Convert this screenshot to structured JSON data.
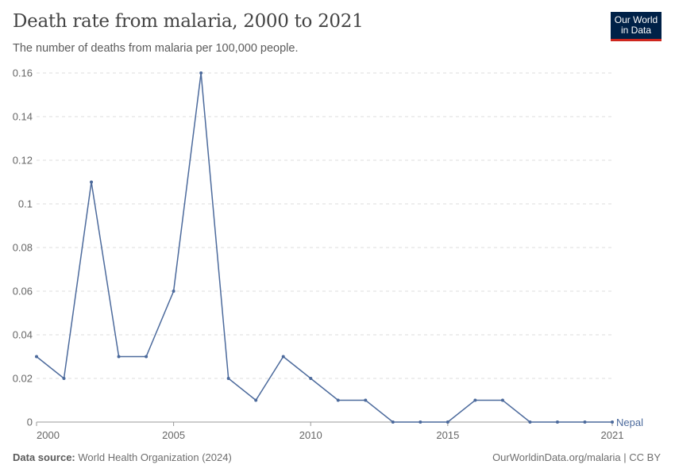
{
  "title": "Death rate from malaria, 2000 to 2021",
  "subtitle": "The number of deaths from malaria per 100,000 people.",
  "logo": "Our World in Data",
  "footer": {
    "source_label": "Data source:",
    "source": "World Health Organization (2024)",
    "license": "OurWorldinData.org/malaria | CC BY"
  },
  "colors": {
    "series": "#4c6a9c",
    "grid": "#dddddd",
    "text": "#666666",
    "logo_bg": "#002147",
    "logo_accent": "#ce261e"
  },
  "chart_data": {
    "type": "line",
    "title": "Death rate from malaria, 2000 to 2021",
    "xlim": [
      2000,
      2021
    ],
    "ylim": [
      0,
      0.16
    ],
    "x_ticks": [
      2000,
      2005,
      2010,
      2015,
      2021
    ],
    "y_ticks": [
      0,
      0.02,
      0.04,
      0.06,
      0.08,
      0.1,
      0.12,
      0.14,
      0.16
    ],
    "y_tick_labels": [
      "0",
      "0.02",
      "0.04",
      "0.06",
      "0.08",
      "0.1",
      "0.12",
      "0.14",
      "0.16"
    ],
    "grid": "horizontal dashed",
    "series": [
      {
        "name": "Nepal",
        "x": [
          2000,
          2001,
          2002,
          2003,
          2004,
          2005,
          2006,
          2007,
          2008,
          2009,
          2010,
          2011,
          2012,
          2013,
          2014,
          2015,
          2016,
          2017,
          2018,
          2019,
          2020,
          2021
        ],
        "values": [
          0.03,
          0.02,
          0.11,
          0.03,
          0.03,
          0.06,
          0.16,
          0.02,
          0.01,
          0.03,
          0.02,
          0.01,
          0.01,
          0,
          0,
          0,
          0.01,
          0.01,
          0,
          0,
          0,
          0
        ]
      }
    ]
  }
}
